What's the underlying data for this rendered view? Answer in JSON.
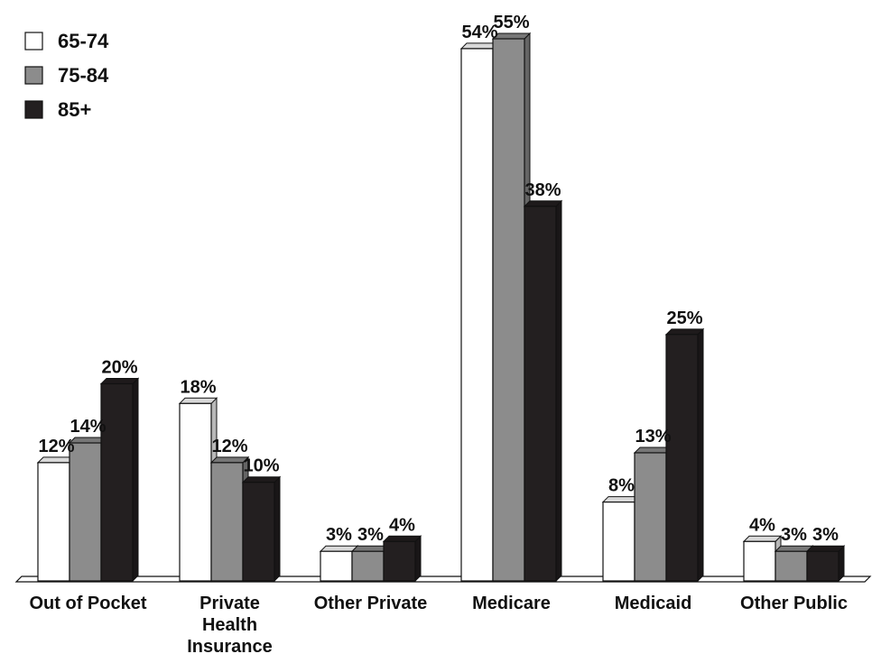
{
  "chart_data": {
    "type": "bar",
    "title": "",
    "xlabel": "",
    "ylabel": "",
    "categories": [
      [
        "Out of Pocket"
      ],
      [
        "Private",
        "Health",
        "Insurance"
      ],
      [
        "Other Private"
      ],
      [
        "Medicare"
      ],
      [
        "Medicaid"
      ],
      [
        "Other Public"
      ]
    ],
    "series": [
      {
        "name": "65-74",
        "color": "#ffffff",
        "values": [
          12,
          18,
          3,
          54,
          8,
          4
        ],
        "labels": [
          "12%",
          "18%",
          "3%",
          "54%",
          "8%",
          "4%"
        ]
      },
      {
        "name": "75-84",
        "color": "#8c8c8c",
        "values": [
          14,
          12,
          3,
          55,
          13,
          3
        ],
        "labels": [
          "14%",
          "12%",
          "3%",
          "55%",
          "13%",
          "3%"
        ]
      },
      {
        "name": "85+",
        "color": "#231f20",
        "values": [
          20,
          10,
          4,
          38,
          25,
          3
        ],
        "labels": [
          "20%",
          "10%",
          "4%",
          "38%",
          "25%",
          "3%"
        ]
      }
    ],
    "ylim": [
      0,
      55
    ],
    "grid": false,
    "legend_position": "top-left",
    "style": "3d-bars"
  }
}
